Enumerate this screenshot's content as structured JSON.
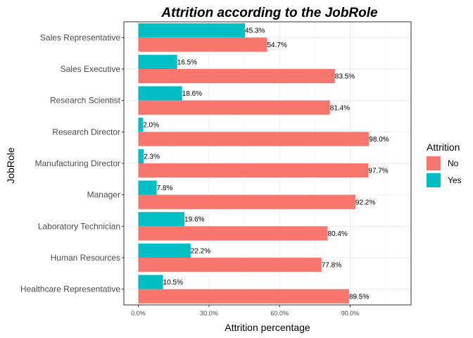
{
  "chart_data": {
    "type": "bar",
    "orientation": "horizontal",
    "title": "Attrition according to the JobRole",
    "xlabel": "Attrition percentage",
    "ylabel": "JobRole",
    "xlim": [
      0,
      1.22
    ],
    "xticks": [
      0,
      0.3,
      0.6,
      0.9
    ],
    "xtick_labels": [
      "0.0%",
      "30.0%",
      "60.0%",
      "90.0%"
    ],
    "grid": true,
    "legend_position": "right",
    "legend_title": "Attrition",
    "categories": [
      "Sales Representative",
      "Sales Executive",
      "Research Scientist",
      "Research Director",
      "Manufacturing Director",
      "Manager",
      "Laboratory Technician",
      "Human Resources",
      "Healthcare Representative"
    ],
    "series": [
      {
        "name": "No",
        "color": "#F8766D",
        "values": [
          0.547,
          0.835,
          0.814,
          0.98,
          0.977,
          0.922,
          0.804,
          0.778,
          0.895
        ],
        "labels": [
          "54.7%",
          "83.5%",
          "81.4%",
          "98.0%",
          "97.7%",
          "92.2%",
          "80.4%",
          "77.8%",
          "89.5%"
        ]
      },
      {
        "name": "Yes",
        "color": "#00BFC4",
        "values": [
          0.453,
          0.165,
          0.186,
          0.02,
          0.023,
          0.078,
          0.196,
          0.222,
          0.105
        ],
        "labels": [
          "45.3%",
          "16.5%",
          "18.6%",
          "2.0%",
          "2.3%",
          "7.8%",
          "19.6%",
          "22.2%",
          "10.5%"
        ]
      }
    ]
  }
}
